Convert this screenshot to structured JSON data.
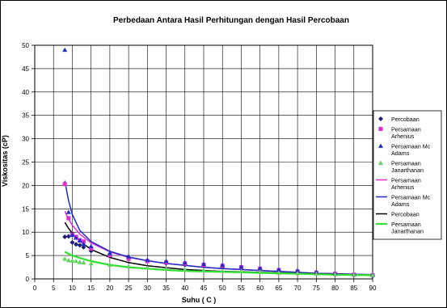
{
  "chart_data": {
    "type": "scatter",
    "title": "Perbedaan Antara Hasil Perhitungan dengan Hasil Percobaan",
    "xlabel": "Suhu ( C )",
    "ylabel": "Viskositas (cP)",
    "xlim": [
      0,
      90
    ],
    "ylim": [
      0,
      50
    ],
    "x_ticks": [
      0,
      5,
      10,
      15,
      20,
      25,
      30,
      35,
      40,
      45,
      50,
      55,
      60,
      65,
      70,
      75,
      80,
      85,
      90
    ],
    "y_ticks": [
      0,
      5,
      10,
      15,
      20,
      25,
      30,
      35,
      40,
      45,
      50
    ],
    "grid": true,
    "legend_position": "right",
    "series": [
      {
        "name": "Percobaan",
        "kind": "marker",
        "marker": "diamond",
        "color": "#1a1f7a",
        "points": [
          [
            8,
            9
          ],
          [
            9,
            9.1
          ],
          [
            10,
            7.8
          ],
          [
            11,
            7.4
          ],
          [
            12,
            7.2
          ],
          [
            13,
            6.8
          ],
          [
            15,
            6.0
          ],
          [
            20,
            5.0
          ],
          [
            25,
            4.4
          ],
          [
            30,
            3.9
          ],
          [
            35,
            3.3
          ],
          [
            40,
            3.0
          ],
          [
            45,
            2.8
          ],
          [
            50,
            2.5
          ],
          [
            55,
            2.3
          ],
          [
            60,
            2.0
          ],
          [
            65,
            1.7
          ],
          [
            70,
            1.5
          ],
          [
            75,
            1.2
          ],
          [
            80,
            1.0
          ],
          [
            85,
            0.8
          ],
          [
            90,
            0.6
          ]
        ]
      },
      {
        "name": "Persamaan Arrhenius",
        "kind": "marker",
        "marker": "square",
        "color": "#e02fd2",
        "points": [
          [
            8,
            20.3
          ],
          [
            9,
            13.0
          ],
          [
            10,
            9.5
          ],
          [
            11,
            9.0
          ],
          [
            12,
            8.3
          ],
          [
            13,
            8.0
          ],
          [
            15,
            6.5
          ],
          [
            20,
            5.1
          ],
          [
            25,
            4.3
          ],
          [
            30,
            3.8
          ],
          [
            35,
            3.5
          ],
          [
            40,
            3.3
          ],
          [
            45,
            3.0
          ],
          [
            50,
            2.8
          ],
          [
            55,
            2.5
          ],
          [
            60,
            2.2
          ],
          [
            65,
            1.9
          ],
          [
            70,
            1.6
          ],
          [
            75,
            1.3
          ],
          [
            80,
            1.1
          ],
          [
            85,
            0.9
          ],
          [
            90,
            0.8
          ]
        ]
      },
      {
        "name": "Persamaan Mc Adams",
        "kind": "marker",
        "marker": "triangle",
        "color": "#1f2ec4",
        "points": [
          [
            8,
            49.0
          ],
          [
            9,
            14.3
          ],
          [
            10,
            9.4
          ],
          [
            11,
            8.8
          ],
          [
            12,
            8.2
          ],
          [
            13,
            7.5
          ],
          [
            15,
            7.0
          ],
          [
            20,
            5.5
          ],
          [
            25,
            4.8
          ],
          [
            30,
            4.1
          ],
          [
            35,
            3.8
          ],
          [
            40,
            3.5
          ],
          [
            45,
            3.2
          ],
          [
            50,
            3.0
          ],
          [
            55,
            2.6
          ],
          [
            60,
            2.3
          ],
          [
            65,
            2.0
          ],
          [
            70,
            1.8
          ],
          [
            75,
            1.5
          ],
          [
            80,
            1.2
          ],
          [
            85,
            1.0
          ],
          [
            90,
            0.9
          ]
        ]
      },
      {
        "name": "Persamaan Janarthanan",
        "kind": "marker",
        "marker": "triangle",
        "color": "#5fd45f",
        "points": [
          [
            8,
            4.3
          ],
          [
            9,
            4.0
          ],
          [
            10,
            3.9
          ],
          [
            11,
            3.8
          ],
          [
            12,
            3.6
          ],
          [
            13,
            3.5
          ],
          [
            15,
            3.3
          ],
          [
            20,
            3.0
          ],
          [
            25,
            2.7
          ],
          [
            30,
            2.4
          ],
          [
            35,
            2.2
          ],
          [
            40,
            2.0
          ],
          [
            45,
            1.9
          ],
          [
            50,
            1.7
          ],
          [
            55,
            1.6
          ],
          [
            60,
            1.5
          ],
          [
            65,
            1.3
          ],
          [
            70,
            1.2
          ],
          [
            75,
            1.1
          ],
          [
            80,
            1.0
          ],
          [
            85,
            0.9
          ],
          [
            90,
            0.8
          ]
        ]
      },
      {
        "name": "Persamaan Arrhenius",
        "kind": "line",
        "color": "#e02fd2",
        "width": 1.5,
        "points": [
          [
            8,
            14.5
          ],
          [
            9,
            12.8
          ],
          [
            10,
            11.5
          ],
          [
            12,
            9.6
          ],
          [
            15,
            7.7
          ],
          [
            20,
            5.8
          ],
          [
            25,
            4.6
          ],
          [
            30,
            3.9
          ],
          [
            35,
            3.3
          ],
          [
            40,
            2.9
          ],
          [
            45,
            2.5
          ],
          [
            50,
            2.2
          ],
          [
            55,
            2.0
          ],
          [
            60,
            1.8
          ],
          [
            65,
            1.6
          ],
          [
            70,
            1.4
          ],
          [
            75,
            1.2
          ],
          [
            80,
            1.1
          ],
          [
            85,
            1.0
          ],
          [
            90,
            0.9
          ]
        ]
      },
      {
        "name": "Persamaan Mc Adams",
        "kind": "line",
        "color": "#1f2ec4",
        "width": 1.5,
        "points": [
          [
            8,
            21.0
          ],
          [
            9,
            16.8
          ],
          [
            10,
            13.8
          ],
          [
            12,
            10.4
          ],
          [
            15,
            8.0
          ],
          [
            20,
            5.9
          ],
          [
            25,
            4.7
          ],
          [
            30,
            3.9
          ],
          [
            35,
            3.3
          ],
          [
            40,
            2.9
          ],
          [
            45,
            2.5
          ],
          [
            50,
            2.2
          ],
          [
            55,
            2.0
          ],
          [
            60,
            1.8
          ],
          [
            65,
            1.6
          ],
          [
            70,
            1.4
          ],
          [
            75,
            1.2
          ],
          [
            80,
            1.1
          ],
          [
            85,
            1.0
          ],
          [
            90,
            0.9
          ]
        ]
      },
      {
        "name": "Percobaan",
        "kind": "line",
        "color": "#000000",
        "width": 1.5,
        "points": [
          [
            8,
            12.1
          ],
          [
            9,
            10.8
          ],
          [
            10,
            9.8
          ],
          [
            12,
            8.1
          ],
          [
            15,
            6.3
          ],
          [
            20,
            4.6
          ],
          [
            25,
            3.5
          ],
          [
            30,
            2.8
          ],
          [
            35,
            2.4
          ],
          [
            40,
            2.0
          ],
          [
            45,
            1.8
          ],
          [
            50,
            1.6
          ],
          [
            55,
            1.5
          ],
          [
            60,
            1.4
          ],
          [
            65,
            1.3
          ],
          [
            70,
            1.2
          ],
          [
            75,
            1.1
          ],
          [
            80,
            1.0
          ],
          [
            85,
            0.9
          ],
          [
            90,
            0.8
          ]
        ]
      },
      {
        "name": "Persamaan Janarthanan",
        "kind": "line",
        "color": "#2fe02f",
        "width": 2.2,
        "points": [
          [
            8,
            5.8
          ],
          [
            9,
            5.4
          ],
          [
            10,
            5.0
          ],
          [
            12,
            4.5
          ],
          [
            15,
            3.8
          ],
          [
            20,
            3.0
          ],
          [
            25,
            2.5
          ],
          [
            30,
            2.2
          ],
          [
            35,
            1.9
          ],
          [
            40,
            1.7
          ],
          [
            45,
            1.6
          ],
          [
            50,
            1.5
          ],
          [
            55,
            1.4
          ],
          [
            60,
            1.3
          ],
          [
            65,
            1.2
          ],
          [
            70,
            1.1
          ],
          [
            75,
            1.0
          ],
          [
            80,
            0.9
          ],
          [
            85,
            0.85
          ],
          [
            90,
            0.8
          ]
        ]
      }
    ],
    "legend_entries": [
      {
        "lines": [
          "Percobaan"
        ],
        "series": 0
      },
      {
        "lines": [
          "Persamaan",
          "Arhenius"
        ],
        "series": 1
      },
      {
        "lines": [
          "Persamaan Mc",
          "Adams"
        ],
        "series": 2
      },
      {
        "lines": [
          "Persamaan",
          "Janarthanan"
        ],
        "series": 3
      },
      {
        "lines": [
          "Persamaan",
          "Arhenius"
        ],
        "series": 4
      },
      {
        "lines": [
          "Persamaan Mc",
          "Adams"
        ],
        "series": 5
      },
      {
        "lines": [
          "Percobaan"
        ],
        "series": 6
      },
      {
        "lines": [
          "Persamaan",
          "Janarthanan"
        ],
        "series": 7
      }
    ]
  }
}
